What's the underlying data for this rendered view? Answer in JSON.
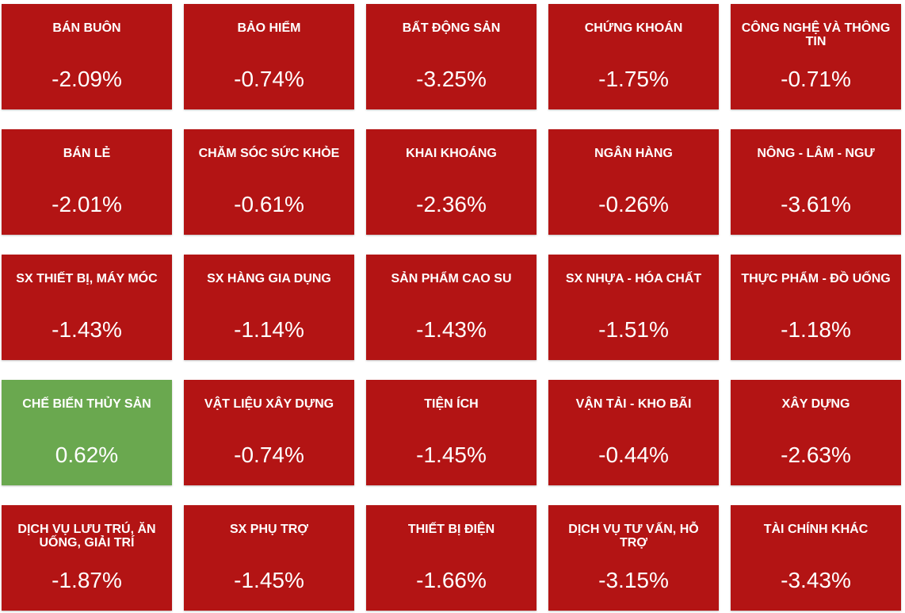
{
  "tiles": [
    {
      "name": "BÁN BUÔN",
      "change": "-2.09%",
      "color": "#b31414"
    },
    {
      "name": "BẢO HIỂM",
      "change": "-0.74%",
      "color": "#b31414"
    },
    {
      "name": "BẤT ĐỘNG SẢN",
      "change": "-3.25%",
      "color": "#b31414"
    },
    {
      "name": "CHỨNG KHOÁN",
      "change": "-1.75%",
      "color": "#b31414"
    },
    {
      "name": "CÔNG NGHỆ VÀ THÔNG TIN",
      "change": "-0.71%",
      "color": "#b31414"
    },
    {
      "name": "BÁN LẺ",
      "change": "-2.01%",
      "color": "#b31414"
    },
    {
      "name": "CHĂM SÓC SỨC KHỎE",
      "change": "-0.61%",
      "color": "#b31414"
    },
    {
      "name": "KHAI KHOÁNG",
      "change": "-2.36%",
      "color": "#b31414"
    },
    {
      "name": "NGÂN HÀNG",
      "change": "-0.26%",
      "color": "#b31414"
    },
    {
      "name": "NÔNG - LÂM - NGƯ",
      "change": "-3.61%",
      "color": "#b31414"
    },
    {
      "name": "SX THIẾT BỊ, MÁY MÓC",
      "change": "-1.43%",
      "color": "#b31414"
    },
    {
      "name": "SX HÀNG GIA DỤNG",
      "change": "-1.14%",
      "color": "#b31414"
    },
    {
      "name": "SẢN PHẨM CAO SU",
      "change": "-1.43%",
      "color": "#b31414"
    },
    {
      "name": "SX NHỰA - HÓA CHẤT",
      "change": "-1.51%",
      "color": "#b31414"
    },
    {
      "name": "THỰC PHẨM - ĐỒ UỐNG",
      "change": "-1.18%",
      "color": "#b31414"
    },
    {
      "name": "CHẾ BIẾN THỦY SẢN",
      "change": "0.62%",
      "color": "#6aa84f"
    },
    {
      "name": "VẬT LIỆU XÂY DỰNG",
      "change": "-0.74%",
      "color": "#b31414"
    },
    {
      "name": "TIỆN ÍCH",
      "change": "-1.45%",
      "color": "#b31414"
    },
    {
      "name": "VẬN TẢI - KHO BÃI",
      "change": "-0.44%",
      "color": "#b31414"
    },
    {
      "name": "XÂY DỰNG",
      "change": "-2.63%",
      "color": "#b31414"
    },
    {
      "name": "DỊCH VỤ LƯU TRÚ, ĂN UỐNG, GIẢI TRÍ",
      "change": "-1.87%",
      "color": "#b31414"
    },
    {
      "name": "SX PHỤ TRỢ",
      "change": "-1.45%",
      "color": "#b31414"
    },
    {
      "name": "THIẾT BỊ ĐIỆN",
      "change": "-1.66%",
      "color": "#b31414"
    },
    {
      "name": "DỊCH VỤ TƯ VẤN, HỖ TRỢ",
      "change": "-3.15%",
      "color": "#b31414"
    },
    {
      "name": "TÀI CHÍNH KHÁC",
      "change": "-3.43%",
      "color": "#b31414"
    }
  ]
}
